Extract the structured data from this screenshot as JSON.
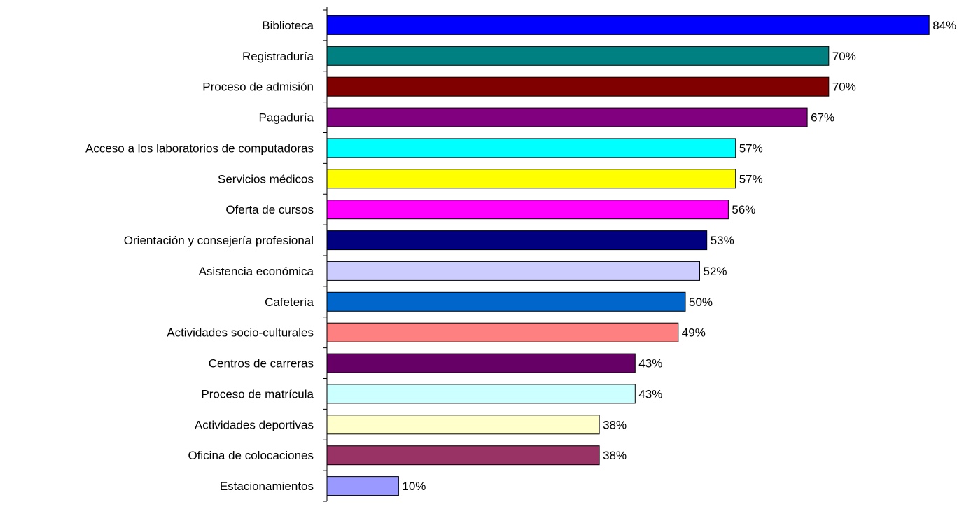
{
  "chart_data": {
    "type": "bar",
    "orientation": "horizontal",
    "title": "",
    "xlabel": "",
    "ylabel": "",
    "xlim": [
      0,
      100
    ],
    "grid": false,
    "legend": "none",
    "categories": [
      "Biblioteca",
      "Registraduría",
      "Proceso de admisión",
      "Pagaduría",
      "Acceso a los laboratorios de computadoras",
      "Servicios médicos",
      "Oferta de cursos",
      "Orientación y consejería profesional",
      "Asistencia económica",
      "Cafetería",
      "Actividades socio-culturales",
      "Centros de carreras",
      "Proceso de matrícula",
      "Actividades deportivas",
      "Oficina de colocaciones",
      "Estacionamientos"
    ],
    "values": [
      84,
      70,
      70,
      67,
      57,
      57,
      56,
      53,
      52,
      50,
      49,
      43,
      43,
      38,
      38,
      10
    ],
    "value_labels": [
      "84%",
      "70%",
      "70%",
      "67%",
      "57%",
      "57%",
      "56%",
      "53%",
      "52%",
      "50%",
      "49%",
      "43%",
      "43%",
      "38%",
      "38%",
      "10%"
    ],
    "colors": [
      "#0000FF",
      "#008080",
      "#800000",
      "#800080",
      "#00FFFF",
      "#FFFF00",
      "#FF00FF",
      "#000080",
      "#CCCCFF",
      "#0066CC",
      "#FF8080",
      "#660066",
      "#CCFFFF",
      "#FFFFCC",
      "#993366",
      "#9999FF"
    ]
  }
}
